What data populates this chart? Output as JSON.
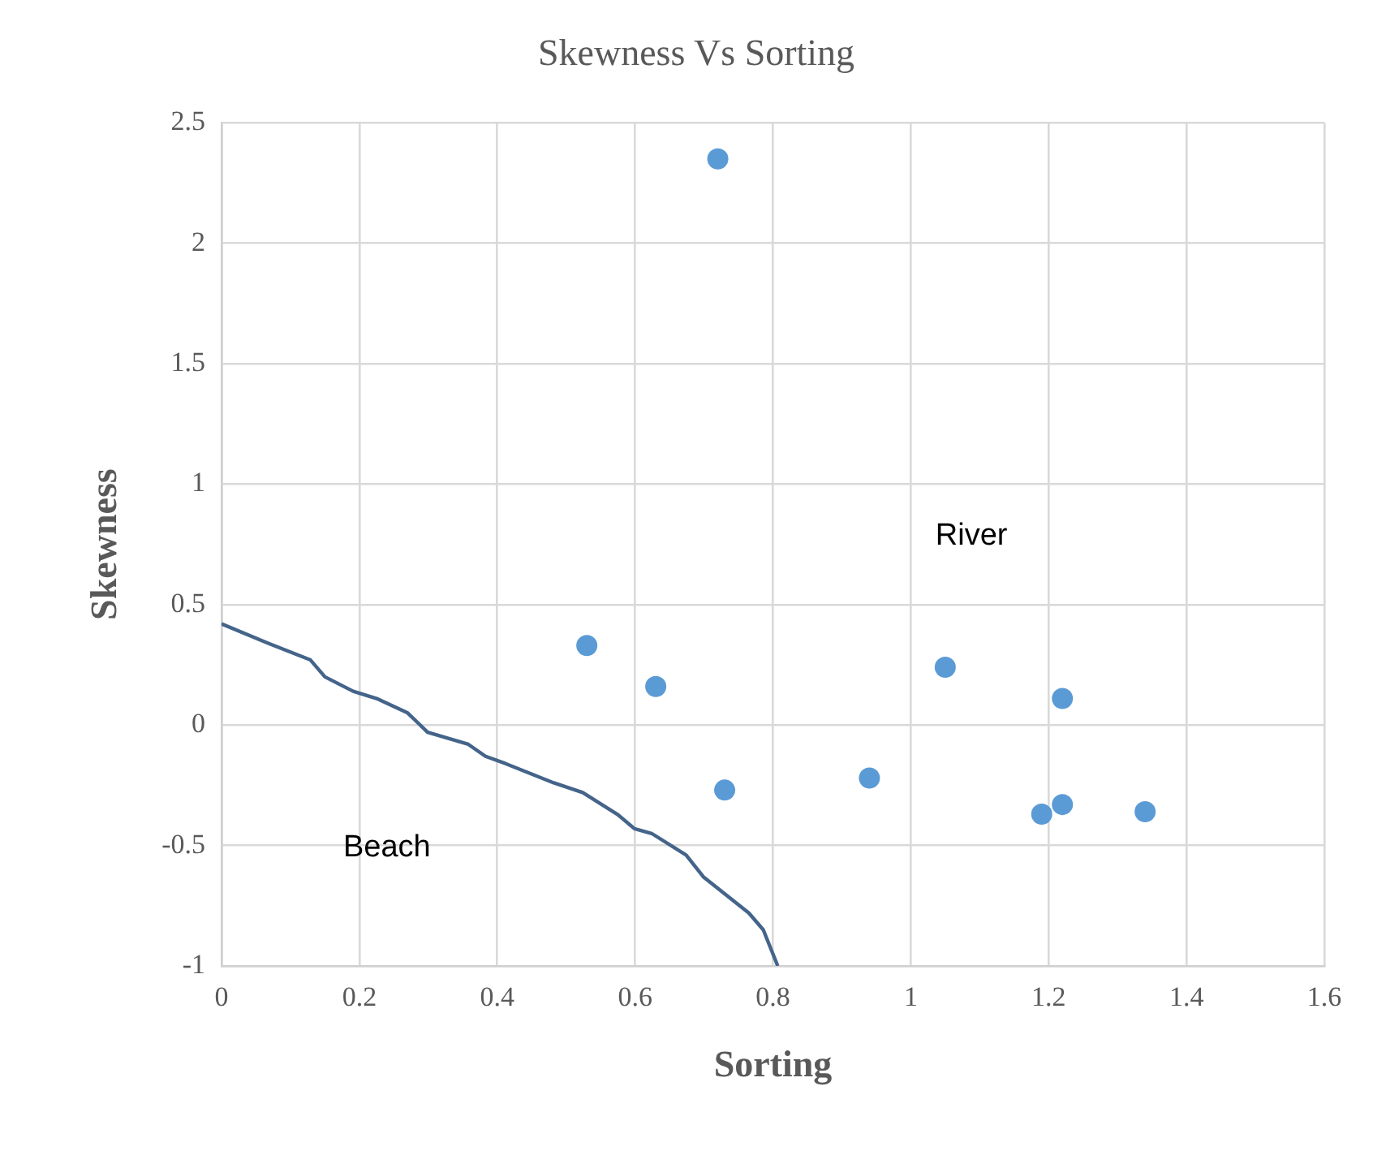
{
  "chart_data": {
    "type": "scatter",
    "title": "Skewness Vs Sorting",
    "xlabel": "Sorting",
    "ylabel": "Skewness",
    "xlim": [
      0,
      1.6
    ],
    "xticks": [
      0,
      0.2,
      0.4,
      0.6,
      0.8,
      1,
      1.2,
      1.4,
      1.6
    ],
    "ylim": [
      -1,
      2.5
    ],
    "yticks": [
      -1,
      -0.5,
      0,
      0.5,
      1,
      1.5,
      2,
      2.5
    ],
    "grid": true,
    "legend": false,
    "series": [
      {
        "type": "scatter",
        "marker": "circle",
        "color": "#5b9bd5",
        "x": [
          0.72,
          0.53,
          0.63,
          0.73,
          0.94,
          1.05,
          1.22,
          1.19,
          1.22,
          1.34
        ],
        "values": [
          2.35,
          0.33,
          0.16,
          -0.27,
          -0.22,
          0.24,
          0.11,
          -0.37,
          -0.33,
          -0.36
        ]
      },
      {
        "type": "line",
        "marker": "none",
        "color": "#44648a",
        "x": [
          0,
          0.067,
          0.129,
          0.15,
          0.191,
          0.225,
          0.27,
          0.299,
          0.358,
          0.383,
          0.412,
          0.482,
          0.524,
          0.574,
          0.599,
          0.624,
          0.674,
          0.699,
          0.765,
          0.786,
          0.807
        ],
        "values": [
          0.42,
          0.34,
          0.27,
          0.2,
          0.14,
          0.11,
          0.05,
          -0.03,
          -0.08,
          -0.13,
          -0.16,
          -0.24,
          -0.28,
          -0.37,
          -0.43,
          -0.45,
          -0.54,
          -0.63,
          -0.78,
          -0.85,
          -1
        ]
      }
    ],
    "annotations": [
      "Beach",
      "River"
    ]
  }
}
